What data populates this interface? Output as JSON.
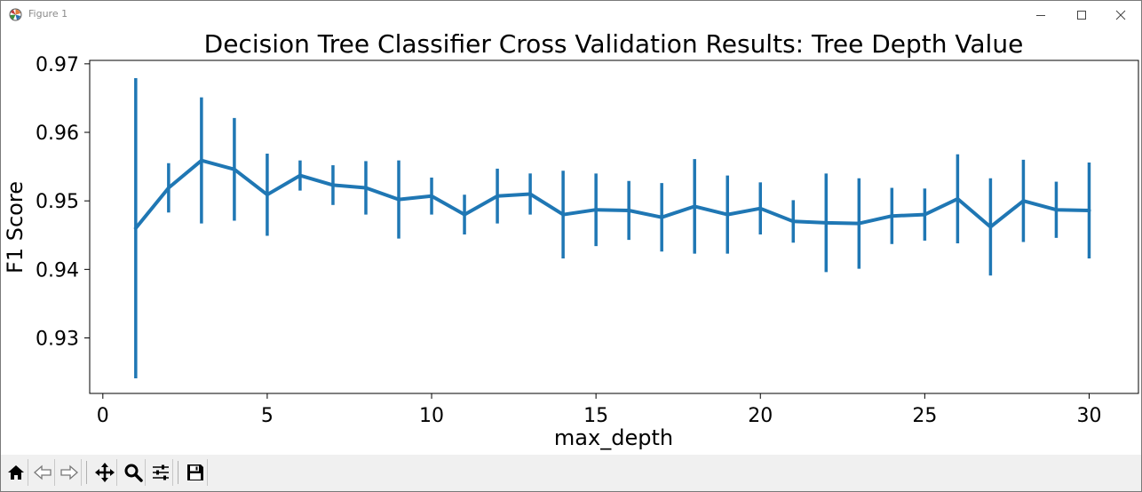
{
  "window": {
    "title": "Figure 1",
    "icon": "matplotlib-icon",
    "controls": [
      "minimize-icon",
      "maximize-icon",
      "close-icon"
    ]
  },
  "toolbar": {
    "buttons": [
      {
        "name": "home-button",
        "icon": "home-icon"
      },
      {
        "name": "back-button",
        "icon": "back-arrow-icon"
      },
      {
        "name": "forward-button",
        "icon": "forward-arrow-icon"
      },
      {
        "name": "pan-button",
        "icon": "move-icon"
      },
      {
        "name": "zoom-button",
        "icon": "magnifier-icon"
      },
      {
        "name": "configure-subplots-button",
        "icon": "sliders-icon"
      },
      {
        "name": "save-button",
        "icon": "floppy-disk-icon"
      }
    ]
  },
  "chart_data": {
    "type": "line",
    "title": "Decision Tree Classifier Cross Validation Results: Tree Depth Value",
    "xlabel": "max_depth",
    "ylabel": "F1 Score",
    "xlim": [
      -0.4,
      31.5
    ],
    "ylim": [
      0.9219,
      0.9705
    ],
    "xticks": [
      0,
      5,
      10,
      15,
      20,
      25,
      30
    ],
    "yticks": [
      0.93,
      0.94,
      0.95,
      0.96,
      0.97
    ],
    "ytick_labels": [
      "0.93",
      "0.94",
      "0.95",
      "0.96",
      "0.97"
    ],
    "grid": false,
    "color": "#1f77b4",
    "x": [
      1,
      2,
      3,
      4,
      5,
      6,
      7,
      8,
      9,
      10,
      11,
      12,
      13,
      14,
      15,
      16,
      17,
      18,
      19,
      20,
      21,
      22,
      23,
      24,
      25,
      26,
      27,
      28,
      29,
      30
    ],
    "y": [
      0.946,
      0.9519,
      0.9559,
      0.9546,
      0.9509,
      0.9537,
      0.9523,
      0.9519,
      0.9502,
      0.9507,
      0.948,
      0.9507,
      0.951,
      0.948,
      0.9487,
      0.9486,
      0.9476,
      0.9492,
      0.948,
      0.9489,
      0.947,
      0.9468,
      0.9467,
      0.9478,
      0.948,
      0.9503,
      0.9462,
      0.95,
      0.9487,
      0.9486
    ],
    "yerr": [
      0.0219,
      0.0036,
      0.0092,
      0.0075,
      0.006,
      0.0022,
      0.0029,
      0.0039,
      0.0057,
      0.0027,
      0.0029,
      0.004,
      0.003,
      0.0064,
      0.0053,
      0.0043,
      0.005,
      0.0069,
      0.0057,
      0.0038,
      0.0031,
      0.0072,
      0.0066,
      0.0041,
      0.0038,
      0.0065,
      0.0071,
      0.006,
      0.0041,
      0.007
    ]
  }
}
